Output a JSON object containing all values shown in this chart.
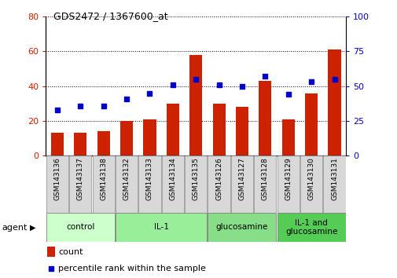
{
  "title": "GDS2472 / 1367600_at",
  "samples": [
    "GSM143136",
    "GSM143137",
    "GSM143138",
    "GSM143132",
    "GSM143133",
    "GSM143134",
    "GSM143135",
    "GSM143126",
    "GSM143127",
    "GSM143128",
    "GSM143129",
    "GSM143130",
    "GSM143131"
  ],
  "counts": [
    13,
    13,
    14,
    20,
    21,
    30,
    58,
    30,
    28,
    43,
    21,
    36,
    61
  ],
  "percentiles": [
    33,
    36,
    36,
    41,
    45,
    51,
    55,
    51,
    50,
    57,
    44,
    53,
    55
  ],
  "bar_color": "#cc2200",
  "dot_color": "#0000cc",
  "ylim_left": [
    0,
    80
  ],
  "ylim_right": [
    0,
    100
  ],
  "yticks_left": [
    0,
    20,
    40,
    60,
    80
  ],
  "yticks_right": [
    0,
    25,
    50,
    75,
    100
  ],
  "groups": [
    {
      "label": "control",
      "start": 0,
      "end": 3,
      "color": "#ccffcc"
    },
    {
      "label": "IL-1",
      "start": 3,
      "end": 7,
      "color": "#99ee99"
    },
    {
      "label": "glucosamine",
      "start": 7,
      "end": 10,
      "color": "#88dd88"
    },
    {
      "label": "IL-1 and\nglucosamine",
      "start": 10,
      "end": 13,
      "color": "#55cc55"
    }
  ],
  "xlabel_agent": "agent",
  "legend_count": "count",
  "legend_percentile": "percentile rank within the sample",
  "tick_label_color_left": "#cc2200",
  "tick_label_color_right": "#0000cc",
  "label_box_color": "#d8d8d8",
  "label_box_edge": "#888888"
}
